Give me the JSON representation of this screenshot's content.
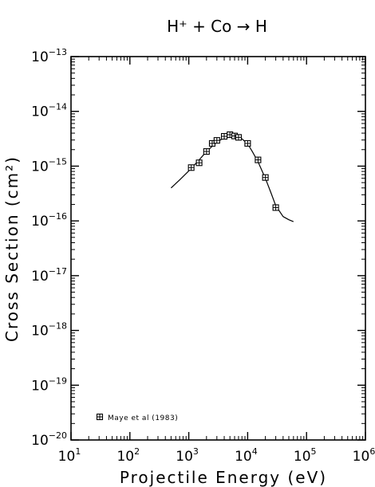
{
  "chart_data": {
    "type": "scatter",
    "title": "H⁺ + Co → H",
    "xlabel": "Projectile Energy (eV)",
    "ylabel": "Cross Section (cm²)",
    "x_scale": "log",
    "y_scale": "log",
    "xlim": [
      10,
      1000000
    ],
    "ylim": [
      1e-20,
      1e-13
    ],
    "x_ticks": [
      {
        "base": "10",
        "exp": "1"
      },
      {
        "base": "10",
        "exp": "2"
      },
      {
        "base": "10",
        "exp": "3"
      },
      {
        "base": "10",
        "exp": "4"
      },
      {
        "base": "10",
        "exp": "5"
      },
      {
        "base": "10",
        "exp": "6"
      }
    ],
    "y_ticks": [
      {
        "base": "10",
        "exp": "−20"
      },
      {
        "base": "10",
        "exp": "−19"
      },
      {
        "base": "10",
        "exp": "−18"
      },
      {
        "base": "10",
        "exp": "−17"
      },
      {
        "base": "10",
        "exp": "−16"
      },
      {
        "base": "10",
        "exp": "−15"
      },
      {
        "base": "10",
        "exp": "−14"
      },
      {
        "base": "10",
        "exp": "−13"
      }
    ],
    "grid": false,
    "legend_position": "bottom-left",
    "series": [
      {
        "name": "Maye et al (1983)",
        "kind": "points",
        "marker": "boxed-cross",
        "x": [
          1100,
          1500,
          2000,
          2500,
          3000,
          4000,
          5000,
          6000,
          7000,
          10000,
          15000,
          20000,
          30000
        ],
        "y": [
          9.4e-16,
          1.15e-15,
          1.85e-15,
          2.6e-15,
          2.95e-15,
          3.5e-15,
          3.75e-15,
          3.55e-15,
          3.35e-15,
          2.6e-15,
          1.3e-15,
          6.2e-16,
          1.75e-16
        ]
      },
      {
        "kind": "fit-curve",
        "x": [
          500,
          700,
          1000,
          1500,
          2000,
          3000,
          4000,
          5000,
          6000,
          7000,
          8000,
          10000,
          12000,
          15000,
          20000,
          25000,
          30000,
          40000,
          50000,
          60000
        ],
        "y": [
          4e-16,
          5.6e-16,
          8.2e-16,
          1.3e-15,
          1.85e-15,
          2.75e-15,
          3.3e-15,
          3.55e-15,
          3.55e-15,
          3.4e-15,
          3.15e-15,
          2.55e-15,
          1.85e-15,
          1.2e-15,
          6e-16,
          3.2e-16,
          1.9e-16,
          1.2e-16,
          1.05e-16,
          9.7e-17
        ]
      }
    ]
  }
}
